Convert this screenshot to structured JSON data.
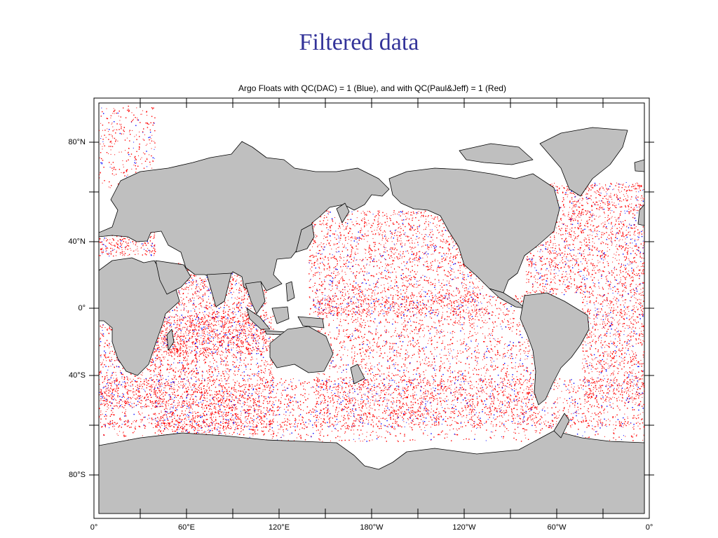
{
  "slide": {
    "title": "Filtered data"
  },
  "map": {
    "title": "Argo Floats with QC(DAC) = 1 (Blue), and with QC(Paul&Jeff) = 1 (Red)",
    "projection": "cylindrical-equidistant",
    "lat_ticks": [
      "80°N",
      "40°N",
      "0°",
      "40°S",
      "80°S"
    ],
    "lon_ticks": [
      "0°",
      "60°E",
      "120°E",
      "180°W",
      "120°W",
      "60°W",
      "0°"
    ],
    "colors": {
      "land": "#bfbfbf",
      "ocean": "#ffffff",
      "qc_dac": "#0000ff",
      "qc_paul_jeff": "#ff0000",
      "coast": "#000000"
    },
    "legend": [
      {
        "label": "QC(DAC) = 1",
        "color_name": "Blue"
      },
      {
        "label": "QC(Paul&Jeff) = 1",
        "color_name": "Red"
      }
    ]
  }
}
